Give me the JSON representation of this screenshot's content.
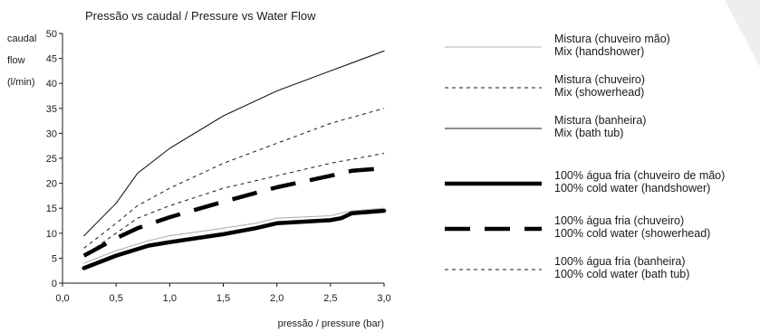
{
  "chart_data": {
    "type": "line",
    "title": "Pressão vs caudal / Pressure vs Water Flow",
    "ylabel_lines": [
      "caudal",
      "flow",
      "(l/min)"
    ],
    "xlabel": "pressão / pressure (bar)",
    "xlim": [
      0,
      3
    ],
    "ylim": [
      0,
      50
    ],
    "x_ticks": [
      "0,0",
      "0,5",
      "1,0",
      "1,5",
      "2,0",
      "2,5",
      "3,0"
    ],
    "y_ticks": [
      "0",
      "5",
      "10",
      "15",
      "20",
      "25",
      "30",
      "35",
      "40",
      "45",
      "50"
    ],
    "grid": false,
    "legend_position": "right",
    "series": [
      {
        "name": "Mistura (chuveiro mão)",
        "name2": "Mix (handshower)",
        "style": "thin-solid",
        "color": "#b0b0b0",
        "x": [
          0.2,
          0.5,
          0.8,
          1.0,
          1.5,
          1.8,
          2.0,
          2.5,
          2.6,
          2.7,
          3.0
        ],
        "y": [
          4,
          6.5,
          8.5,
          9.5,
          11,
          12,
          13,
          13.5,
          14,
          14.5,
          15
        ]
      },
      {
        "name": "Mistura (chuveiro)",
        "name2": "Mix (showerhead)",
        "style": "thin-dashed",
        "color": "#1a1a1a",
        "x": [
          0.2,
          0.5,
          0.7,
          1.0,
          1.5,
          2.0,
          2.5,
          3.0
        ],
        "y": [
          7,
          12,
          15.5,
          19,
          24,
          28,
          32,
          35
        ]
      },
      {
        "name": "Mistura (banheira)",
        "name2": "Mix (bath tub)",
        "style": "thin-solid",
        "color": "#1a1a1a",
        "x": [
          0.2,
          0.5,
          0.7,
          1.0,
          1.5,
          2.0,
          2.5,
          3.0
        ],
        "y": [
          9.5,
          16,
          22,
          27,
          33.5,
          38.5,
          42.5,
          46.5
        ]
      },
      {
        "name": "100% água fria (chuveiro de mão)",
        "name2": "100% cold water (handshower)",
        "style": "thick-solid",
        "color": "#000000",
        "x": [
          0.2,
          0.5,
          0.8,
          1.0,
          1.5,
          1.8,
          2.0,
          2.5,
          2.6,
          2.7,
          3.0
        ],
        "y": [
          3,
          5.5,
          7.5,
          8.2,
          9.8,
          11,
          12,
          12.6,
          13,
          14,
          14.5
        ]
      },
      {
        "name": "100% água fria (chuveiro)",
        "name2": "100% cold water (showerhead)",
        "style": "thick-dashed",
        "color": "#000000",
        "x": [
          0.2,
          0.5,
          0.7,
          1.0,
          1.5,
          2.0,
          2.5,
          2.7,
          3.0
        ],
        "y": [
          5.5,
          9,
          11,
          13.2,
          16.3,
          19.2,
          21.5,
          22.5,
          23
        ]
      },
      {
        "name": "100% água fria (banheira)",
        "name2": "100% cold water (bath tub)",
        "style": "thin-dashed",
        "color": "#1a1a1a",
        "x": [
          0.2,
          0.5,
          0.7,
          1.0,
          1.5,
          2.0,
          2.5,
          3.0
        ],
        "y": [
          5.5,
          10,
          13,
          15.5,
          19,
          21.5,
          24,
          26
        ]
      }
    ]
  }
}
